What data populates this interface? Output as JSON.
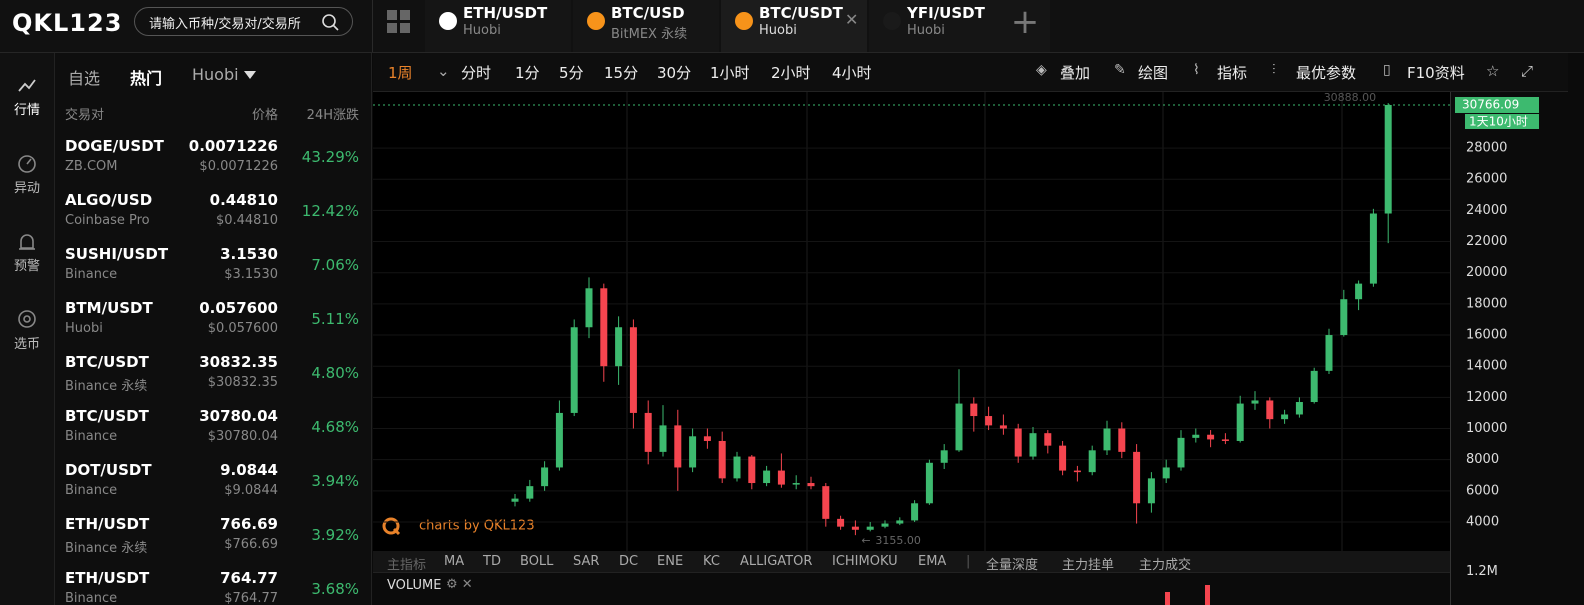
{
  "header": {
    "logo": "QKL123",
    "search_placeholder": "请输入币种/交易对/交易所",
    "tabs": [
      {
        "pair": "ETH/USDT",
        "exchange": "Huobi"
      },
      {
        "pair": "BTC/USD",
        "exchange": "BitMEX  永续"
      },
      {
        "pair": "BTC/USDT",
        "exchange": "Huobi"
      },
      {
        "pair": "YFI/USDT",
        "exchange": "Huobi"
      }
    ]
  },
  "sidebar": [
    "行情",
    "异动",
    "预警",
    "选币"
  ],
  "market_list": {
    "tabs": [
      "自选",
      "热门"
    ],
    "exchange": "Huobi",
    "columns": [
      "交易对",
      "价格",
      "24H涨跌"
    ],
    "rows": [
      {
        "pair": "DOGE/USDT",
        "exchange": "ZB.COM",
        "price": "0.0071226",
        "price_usd": "$0.0071226",
        "change": "43.29%"
      },
      {
        "pair": "ALGO/USD",
        "exchange": "Coinbase Pro",
        "price": "0.44810",
        "price_usd": "$0.44810",
        "change": "12.42%"
      },
      {
        "pair": "SUSHI/USDT",
        "exchange": "Binance",
        "price": "3.1530",
        "price_usd": "$3.1530",
        "change": "7.06%"
      },
      {
        "pair": "BTM/USDT",
        "exchange": "Huobi",
        "price": "0.057600",
        "price_usd": "$0.057600",
        "change": "5.11%"
      },
      {
        "pair": "BTC/USDT",
        "exchange": "Binance 永续",
        "price": "30832.35",
        "price_usd": "$30832.35",
        "change": "4.80%"
      },
      {
        "pair": "BTC/USDT",
        "exchange": "Binance",
        "price": "30780.04",
        "price_usd": "$30780.04",
        "change": "4.68%"
      },
      {
        "pair": "DOT/USDT",
        "exchange": "Binance",
        "price": "9.0844",
        "price_usd": "$9.0844",
        "change": "3.94%"
      },
      {
        "pair": "ETH/USDT",
        "exchange": "Binance 永续",
        "price": "766.69",
        "price_usd": "$766.69",
        "change": "3.92%"
      },
      {
        "pair": "ETH/USDT",
        "exchange": "Binance",
        "price": "764.77",
        "price_usd": "$764.77",
        "change": "3.68%"
      }
    ]
  },
  "toolbar": {
    "periods": [
      "1周",
      "分时",
      "1分",
      "5分",
      "15分",
      "30分",
      "1小时",
      "2小时",
      "4小时"
    ],
    "tools": [
      "叠加",
      "绘图",
      "指标",
      "最优参数",
      "F10资料"
    ]
  },
  "chart_data": {
    "type": "candlestick",
    "watermark": "charts by QKL123",
    "open": [
      5300,
      5500,
      6300,
      7500,
      11000,
      16500,
      19000,
      14000,
      16500,
      11000,
      8500,
      10200,
      7500,
      9500,
      9200,
      6800,
      8200,
      6500,
      7300,
      6400,
      6500,
      6300,
      4200,
      3700,
      3500,
      3700,
      3900,
      4100,
      5200,
      7800,
      8600,
      11600,
      10800,
      10200,
      10000,
      8200,
      9700,
      8900,
      7300,
      7200,
      8600,
      10000,
      8500,
      5200,
      6800,
      7500,
      9400,
      9600,
      9300,
      9200,
      11600,
      11800,
      10600,
      10900,
      11700,
      13700,
      16000,
      18300,
      19300,
      23800
    ],
    "high": [
      5800,
      6700,
      7900,
      11800,
      17000,
      19700,
      19300,
      17200,
      17000,
      11800,
      11500,
      11200,
      10000,
      10000,
      9800,
      8500,
      8300,
      7600,
      8400,
      7000,
      6900,
      6500,
      4400,
      4100,
      4000,
      4100,
      4300,
      5400,
      8000,
      9000,
      13800,
      12000,
      11400,
      10900,
      10300,
      10100,
      9900,
      9200,
      7600,
      8900,
      10500,
      10400,
      9000,
      7200,
      8000,
      9900,
      10000,
      9900,
      9700,
      12100,
      12400,
      12000,
      11200,
      12000,
      13900,
      16400,
      18900,
      19500,
      24100,
      30888
    ],
    "low": [
      5000,
      5300,
      6000,
      7300,
      10800,
      15800,
      13000,
      12800,
      10000,
      7700,
      8200,
      6000,
      7200,
      8700,
      6500,
      6600,
      6100,
      6300,
      6200,
      6100,
      6100,
      3700,
      3500,
      3155,
      3400,
      3600,
      3800,
      4000,
      5100,
      7400,
      8500,
      9800,
      9900,
      9600,
      7800,
      8000,
      8400,
      7000,
      6600,
      7000,
      8300,
      8100,
      3900,
      4600,
      6500,
      7300,
      9100,
      8800,
      9000,
      9100,
      11200,
      10000,
      10300,
      10700,
      11600,
      13500,
      15900,
      17600,
      19100,
      21900
    ],
    "close": [
      5500,
      6300,
      7500,
      11000,
      16500,
      19000,
      14000,
      16500,
      11000,
      8500,
      10200,
      7500,
      9500,
      9200,
      6800,
      8200,
      6500,
      7300,
      6400,
      6500,
      6300,
      4200,
      3700,
      3500,
      3700,
      3900,
      4100,
      5200,
      7800,
      8600,
      11600,
      10800,
      10200,
      10000,
      8200,
      9700,
      8900,
      7300,
      7200,
      8600,
      10000,
      8500,
      5200,
      6800,
      7500,
      9400,
      9600,
      9300,
      9200,
      11600,
      11800,
      10600,
      10900,
      11700,
      13700,
      16000,
      18300,
      19300,
      23800,
      30766.09
    ],
    "up_color": "#3dba6f",
    "down_color": "#f5454f",
    "ylim": [
      2330,
      31600
    ],
    "yticks": [
      4000,
      6000,
      8000,
      10000,
      12000,
      14000,
      16000,
      18000,
      20000,
      22000,
      24000,
      26000,
      28000
    ],
    "last_price": 30766.09,
    "countdown": "1天10小时",
    "high_marker": {
      "value": 30888,
      "label": "30888.00"
    },
    "low_marker": {
      "value": 3155,
      "label": "3155.00"
    }
  },
  "indicators": [
    "主指标",
    "MA",
    "TD",
    "BOLL",
    "SAR",
    "DC",
    "ENE",
    "KC",
    "ALLIGATOR",
    "ICHIMOKU",
    "EMA",
    "全量深度",
    "主力挂单",
    "主力成交"
  ],
  "volume": {
    "title": "VOLUME",
    "yticks": [
      {
        "value": 1200000,
        "label": "1.2M"
      }
    ]
  }
}
